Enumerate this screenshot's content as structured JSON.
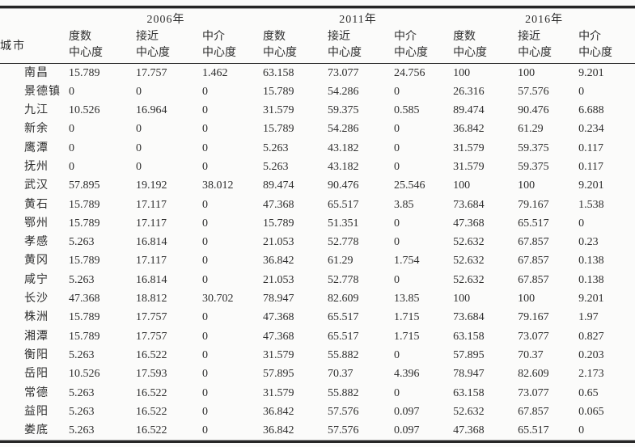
{
  "table": {
    "corner_label": "城市",
    "year_groups": [
      {
        "label": "2006年"
      },
      {
        "label": "2011年"
      },
      {
        "label": "2016年"
      }
    ],
    "measure_headers": [
      {
        "line1": "度数",
        "line2": "中心度"
      },
      {
        "line1": "接近",
        "line2": "中心度"
      },
      {
        "line1": "中介",
        "line2": "中心度"
      }
    ],
    "rows": [
      {
        "city": "南昌",
        "values": [
          "15.789",
          "17.757",
          "1.462",
          "63.158",
          "73.077",
          "24.756",
          "100",
          "100",
          "9.201"
        ]
      },
      {
        "city": "景德镇",
        "values": [
          "0",
          "0",
          "0",
          "15.789",
          "54.286",
          "0",
          "26.316",
          "57.576",
          "0"
        ]
      },
      {
        "city": "九江",
        "values": [
          "10.526",
          "16.964",
          "0",
          "31.579",
          "59.375",
          "0.585",
          "89.474",
          "90.476",
          "6.688"
        ]
      },
      {
        "city": "新余",
        "values": [
          "0",
          "0",
          "0",
          "15.789",
          "54.286",
          "0",
          "36.842",
          "61.29",
          "0.234"
        ]
      },
      {
        "city": "鹰潭",
        "values": [
          "0",
          "0",
          "0",
          "5.263",
          "43.182",
          "0",
          "31.579",
          "59.375",
          "0.117"
        ]
      },
      {
        "city": "抚州",
        "values": [
          "0",
          "0",
          "0",
          "5.263",
          "43.182",
          "0",
          "31.579",
          "59.375",
          "0.117"
        ]
      },
      {
        "city": "武汉",
        "values": [
          "57.895",
          "19.192",
          "38.012",
          "89.474",
          "90.476",
          "25.546",
          "100",
          "100",
          "9.201"
        ]
      },
      {
        "city": "黄石",
        "values": [
          "15.789",
          "17.117",
          "0",
          "47.368",
          "65.517",
          "3.85",
          "73.684",
          "79.167",
          "1.538"
        ]
      },
      {
        "city": "鄂州",
        "values": [
          "15.789",
          "17.117",
          "0",
          "15.789",
          "51.351",
          "0",
          "47.368",
          "65.517",
          "0"
        ]
      },
      {
        "city": "孝感",
        "values": [
          "5.263",
          "16.814",
          "0",
          "21.053",
          "52.778",
          "0",
          "52.632",
          "67.857",
          "0.23"
        ]
      },
      {
        "city": "黄冈",
        "values": [
          "15.789",
          "17.117",
          "0",
          "36.842",
          "61.29",
          "1.754",
          "52.632",
          "67.857",
          "0.138"
        ]
      },
      {
        "city": "咸宁",
        "values": [
          "5.263",
          "16.814",
          "0",
          "21.053",
          "52.778",
          "0",
          "52.632",
          "67.857",
          "0.138"
        ]
      },
      {
        "city": "长沙",
        "values": [
          "47.368",
          "18.812",
          "30.702",
          "78.947",
          "82.609",
          "13.85",
          "100",
          "100",
          "9.201"
        ]
      },
      {
        "city": "株洲",
        "values": [
          "15.789",
          "17.757",
          "0",
          "47.368",
          "65.517",
          "1.715",
          "73.684",
          "79.167",
          "1.97"
        ]
      },
      {
        "city": "湘潭",
        "values": [
          "15.789",
          "17.757",
          "0",
          "47.368",
          "65.517",
          "1.715",
          "63.158",
          "73.077",
          "0.827"
        ]
      },
      {
        "city": "衡阳",
        "values": [
          "5.263",
          "16.522",
          "0",
          "31.579",
          "55.882",
          "0",
          "57.895",
          "70.37",
          "0.203"
        ]
      },
      {
        "city": "岳阳",
        "values": [
          "10.526",
          "17.593",
          "0",
          "57.895",
          "70.37",
          "4.396",
          "78.947",
          "82.609",
          "2.173"
        ]
      },
      {
        "city": "常德",
        "values": [
          "5.263",
          "16.522",
          "0",
          "31.579",
          "55.882",
          "0",
          "63.158",
          "73.077",
          "0.65"
        ]
      },
      {
        "city": "益阳",
        "values": [
          "5.263",
          "16.522",
          "0",
          "36.842",
          "57.576",
          "0.097",
          "52.632",
          "67.857",
          "0.065"
        ]
      },
      {
        "city": "娄底",
        "values": [
          "5.263",
          "16.522",
          "0",
          "36.842",
          "57.576",
          "0.097",
          "47.368",
          "65.517",
          "0"
        ]
      }
    ]
  },
  "colors": {
    "text": "#2e2e2e",
    "rule_heavy": "#262626",
    "rule_light": "#9d9d9d",
    "background": "#fbfbfa"
  }
}
